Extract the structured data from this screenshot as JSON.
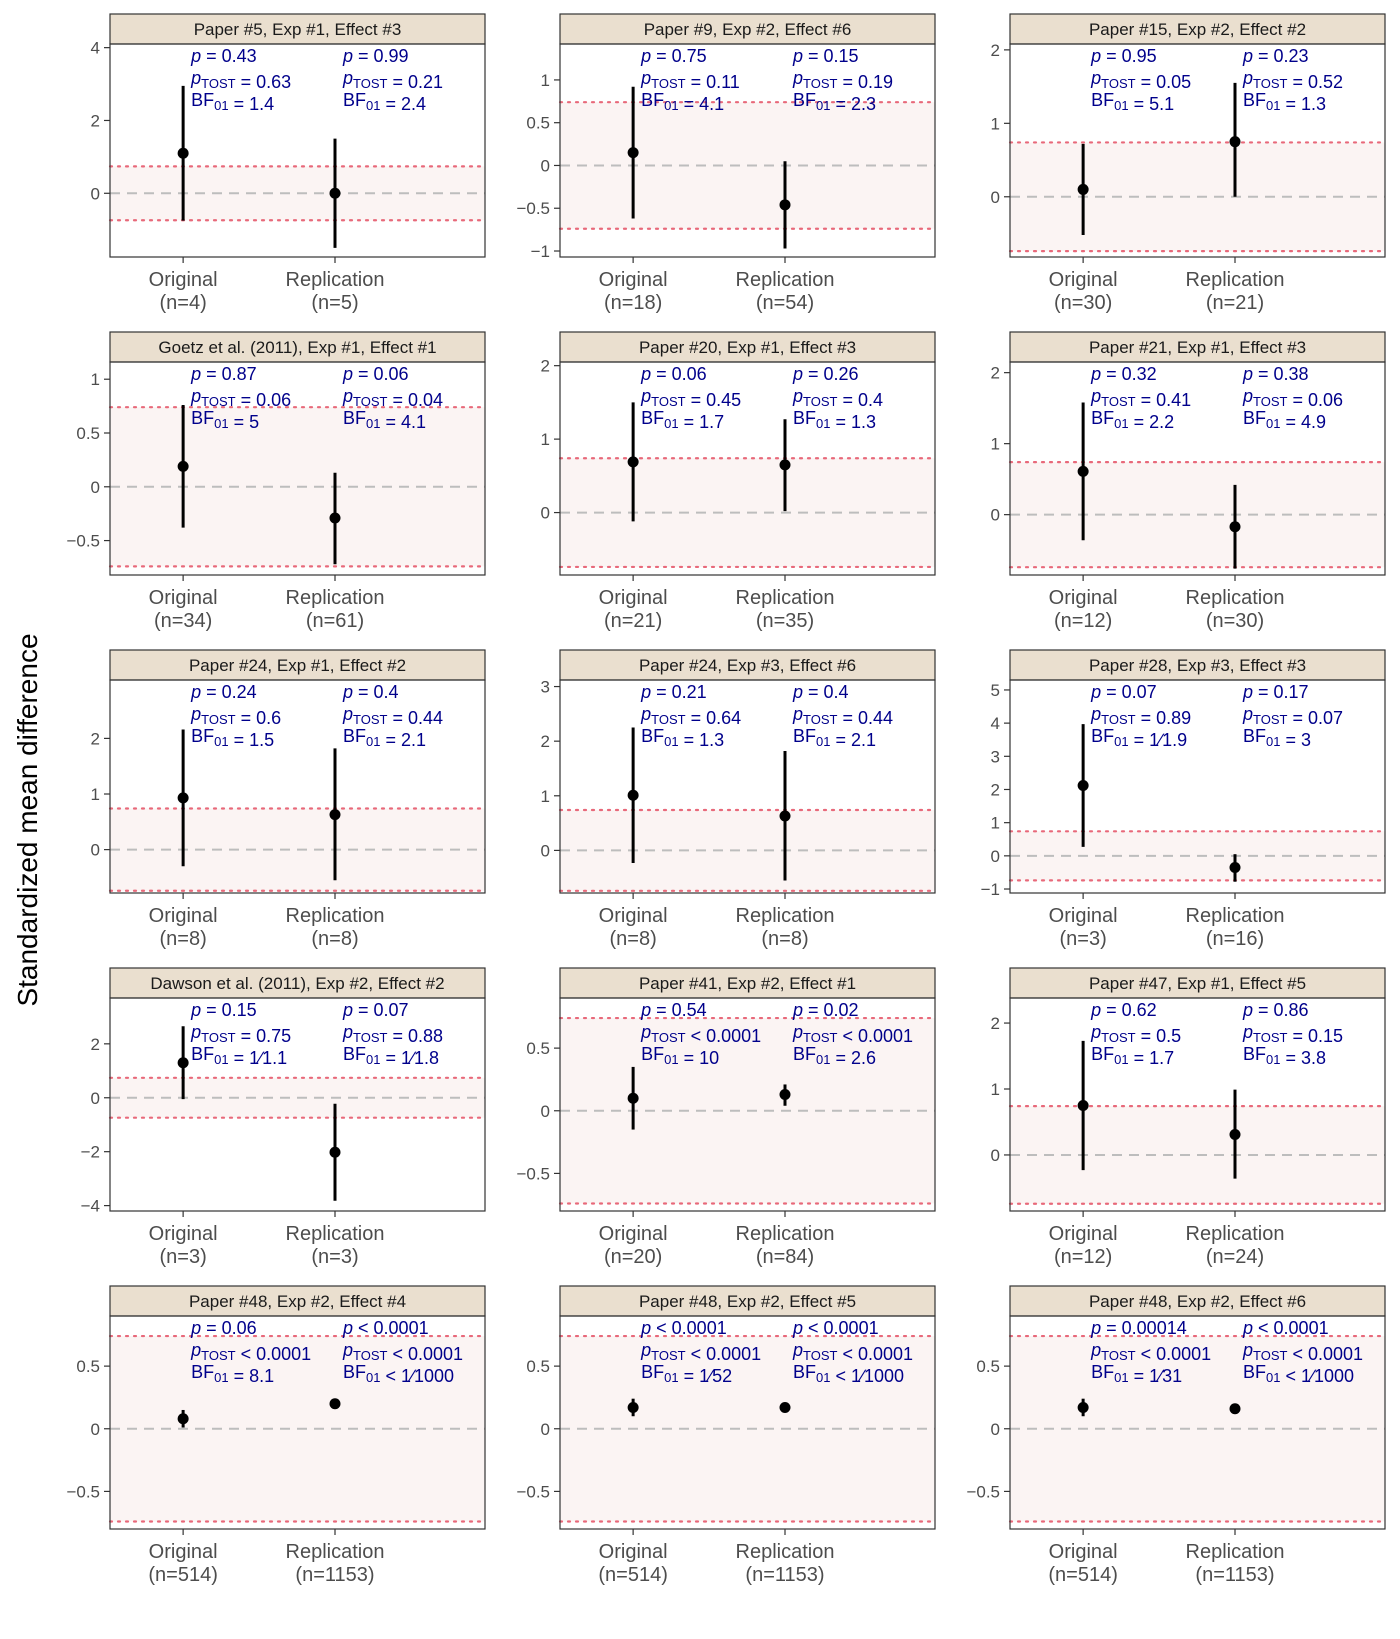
{
  "y_axis_title": "Standardized mean difference",
  "colors": {
    "strip": "#EADFCF",
    "band": "#FBF4F3",
    "margin_line": "#E8697A",
    "zero_line": "#BDBDBD",
    "stats_text": "#00008B",
    "axis_text": "#4D4D4D"
  },
  "chart_data": [
    {
      "type": "pointrange",
      "title": "Paper #5, Exp #1, Effect #3",
      "ylim": [
        -1.75,
        4.1
      ],
      "ticks": [
        0,
        2,
        4
      ],
      "margin": [
        -0.74,
        0.74
      ],
      "categories": [
        "Original",
        "Replication"
      ],
      "n": [
        "(n=4)",
        "(n=5)"
      ],
      "points": [
        {
          "est": 1.1,
          "lo": -0.75,
          "hi": 2.95
        },
        {
          "est": 0.0,
          "lo": -1.5,
          "hi": 1.5
        }
      ],
      "stats": [
        [
          "p = 0.43",
          "pTOST = 0.63",
          "BF01 = 1.4"
        ],
        [
          "p = 0.99",
          "pTOST = 0.21",
          "BF01 = 2.4"
        ]
      ]
    },
    {
      "type": "pointrange",
      "title": "Paper #9, Exp #2, Effect #6",
      "ylim": [
        -1.07,
        1.42
      ],
      "ticks": [
        -1.0,
        -0.5,
        0.0,
        0.5,
        1.0
      ],
      "margin": [
        -0.74,
        0.74
      ],
      "categories": [
        "Original",
        "Replication"
      ],
      "n": [
        "(n=18)",
        "(n=54)"
      ],
      "points": [
        {
          "est": 0.15,
          "lo": -0.62,
          "hi": 0.92
        },
        {
          "est": -0.46,
          "lo": -0.97,
          "hi": 0.05
        }
      ],
      "stats": [
        [
          "p = 0.75",
          "pTOST = 0.11",
          "BF01 = 4.1"
        ],
        [
          "p = 0.15",
          "pTOST = 0.19",
          "BF01 = 2.3"
        ]
      ]
    },
    {
      "type": "pointrange",
      "title": "Paper #15, Exp #2, Effect #2",
      "ylim": [
        -0.82,
        2.08
      ],
      "ticks": [
        0,
        1,
        2
      ],
      "margin": [
        -0.74,
        0.74
      ],
      "categories": [
        "Original",
        "Replication"
      ],
      "n": [
        "(n=30)",
        "(n=21)"
      ],
      "points": [
        {
          "est": 0.1,
          "lo": -0.52,
          "hi": 0.72
        },
        {
          "est": 0.75,
          "lo": 0.0,
          "hi": 1.55
        }
      ],
      "stats": [
        [
          "p = 0.95",
          "pTOST = 0.05",
          "BF01 = 5.1"
        ],
        [
          "p = 0.23",
          "pTOST = 0.52",
          "BF01 = 1.3"
        ]
      ]
    },
    {
      "type": "pointrange",
      "title": "Goetz et al. (2011), Exp #1, Effect #1",
      "ylim": [
        -0.82,
        1.16
      ],
      "ticks": [
        -0.5,
        0.0,
        0.5,
        1.0
      ],
      "margin": [
        -0.74,
        0.74
      ],
      "categories": [
        "Original",
        "Replication"
      ],
      "n": [
        "(n=34)",
        "(n=61)"
      ],
      "points": [
        {
          "est": 0.19,
          "lo": -0.38,
          "hi": 0.76
        },
        {
          "est": -0.29,
          "lo": -0.72,
          "hi": 0.13
        }
      ],
      "stats": [
        [
          "p = 0.87",
          "pTOST = 0.06",
          "BF01 = 5"
        ],
        [
          "p = 0.06",
          "pTOST = 0.04",
          "BF01 = 4.1"
        ]
      ]
    },
    {
      "type": "pointrange",
      "title": "Paper #20, Exp #1, Effect #3",
      "ylim": [
        -0.85,
        2.05
      ],
      "ticks": [
        0,
        1,
        2
      ],
      "margin": [
        -0.74,
        0.74
      ],
      "categories": [
        "Original",
        "Replication"
      ],
      "n": [
        "(n=21)",
        "(n=35)"
      ],
      "points": [
        {
          "est": 0.69,
          "lo": -0.12,
          "hi": 1.5
        },
        {
          "est": 0.65,
          "lo": 0.02,
          "hi": 1.27
        }
      ],
      "stats": [
        [
          "p = 0.06",
          "pTOST = 0.45",
          "BF01 = 1.7"
        ],
        [
          "p = 0.26",
          "pTOST = 0.4",
          "BF01 = 1.3"
        ]
      ]
    },
    {
      "type": "pointrange",
      "title": "Paper #21, Exp #1, Effect #3",
      "ylim": [
        -0.85,
        2.15
      ],
      "ticks": [
        0,
        1,
        2
      ],
      "margin": [
        -0.74,
        0.74
      ],
      "categories": [
        "Original",
        "Replication"
      ],
      "n": [
        "(n=12)",
        "(n=30)"
      ],
      "points": [
        {
          "est": 0.61,
          "lo": -0.36,
          "hi": 1.58
        },
        {
          "est": -0.17,
          "lo": -0.76,
          "hi": 0.42
        }
      ],
      "stats": [
        [
          "p = 0.32",
          "pTOST = 0.41",
          "BF01 = 2.2"
        ],
        [
          "p = 0.38",
          "pTOST = 0.06",
          "BF01 = 4.9"
        ]
      ]
    },
    {
      "type": "pointrange",
      "title": "Paper #24, Exp #1, Effect #2",
      "ylim": [
        -0.78,
        3.05
      ],
      "ticks": [
        0,
        1,
        2
      ],
      "margin": [
        -0.74,
        0.74
      ],
      "categories": [
        "Original",
        "Replication"
      ],
      "n": [
        "(n=8)",
        "(n=8)"
      ],
      "points": [
        {
          "est": 0.93,
          "lo": -0.3,
          "hi": 2.16
        },
        {
          "est": 0.63,
          "lo": -0.55,
          "hi": 1.82
        }
      ],
      "stats": [
        [
          "p = 0.24",
          "pTOST = 0.6",
          "BF01 = 1.5"
        ],
        [
          "p = 0.4",
          "pTOST = 0.44",
          "BF01 = 2.1"
        ]
      ]
    },
    {
      "type": "pointrange",
      "title": "Paper #24, Exp #3, Effect #6",
      "ylim": [
        -0.78,
        3.12
      ],
      "ticks": [
        0,
        1,
        2,
        3
      ],
      "margin": [
        -0.74,
        0.74
      ],
      "categories": [
        "Original",
        "Replication"
      ],
      "n": [
        "(n=8)",
        "(n=8)"
      ],
      "points": [
        {
          "est": 1.01,
          "lo": -0.23,
          "hi": 2.25
        },
        {
          "est": 0.63,
          "lo": -0.55,
          "hi": 1.82
        }
      ],
      "stats": [
        [
          "p = 0.21",
          "pTOST = 0.64",
          "BF01 = 1.3"
        ],
        [
          "p = 0.4",
          "pTOST = 0.44",
          "BF01 = 2.1"
        ]
      ]
    },
    {
      "type": "pointrange",
      "title": "Paper #28, Exp #3, Effect #3",
      "ylim": [
        -1.12,
        5.3
      ],
      "ticks": [
        -1,
        0,
        1,
        2,
        3,
        4,
        5
      ],
      "margin": [
        -0.74,
        0.74
      ],
      "categories": [
        "Original",
        "Replication"
      ],
      "n": [
        "(n=3)",
        "(n=16)"
      ],
      "points": [
        {
          "est": 2.12,
          "lo": 0.27,
          "hi": 3.97
        },
        {
          "est": -0.35,
          "lo": -0.78,
          "hi": 0.05
        }
      ],
      "stats": [
        [
          "p = 0.07",
          "pTOST = 0.89",
          "BF01 = 1/1.9"
        ],
        [
          "p = 0.17",
          "pTOST = 0.07",
          "BF01 = 3"
        ]
      ]
    },
    {
      "type": "pointrange",
      "title": "Dawson et al. (2011), Exp #2, Effect #2",
      "ylim": [
        -4.2,
        3.7
      ],
      "ticks": [
        -4,
        -2,
        0,
        2
      ],
      "margin": [
        -0.74,
        0.74
      ],
      "categories": [
        "Original",
        "Replication"
      ],
      "n": [
        "(n=3)",
        "(n=3)"
      ],
      "points": [
        {
          "est": 1.3,
          "lo": -0.05,
          "hi": 2.65
        },
        {
          "est": -2.02,
          "lo": -3.82,
          "hi": -0.22
        }
      ],
      "stats": [
        [
          "p = 0.15",
          "pTOST = 0.75",
          "BF01 = 1/1.1"
        ],
        [
          "p = 0.07",
          "pTOST = 0.88",
          "BF01 = 1/1.8"
        ]
      ]
    },
    {
      "type": "pointrange",
      "title": "Paper #41, Exp #2, Effect #1",
      "ylim": [
        -0.8,
        0.9
      ],
      "ticks": [
        -0.5,
        0.0,
        0.5
      ],
      "margin": [
        -0.74,
        0.74
      ],
      "categories": [
        "Original",
        "Replication"
      ],
      "n": [
        "(n=20)",
        "(n=84)"
      ],
      "points": [
        {
          "est": 0.1,
          "lo": -0.15,
          "hi": 0.35
        },
        {
          "est": 0.13,
          "lo": 0.04,
          "hi": 0.21
        }
      ],
      "stats": [
        [
          "p = 0.54",
          "pTOST < 0.0001",
          "BF01 = 10"
        ],
        [
          "p = 0.02",
          "pTOST < 0.0001",
          "BF01 = 2.6"
        ]
      ]
    },
    {
      "type": "pointrange",
      "title": "Paper #47, Exp #1, Effect #5",
      "ylim": [
        -0.85,
        2.38
      ],
      "ticks": [
        0,
        1,
        2
      ],
      "margin": [
        -0.74,
        0.74
      ],
      "categories": [
        "Original",
        "Replication"
      ],
      "n": [
        "(n=12)",
        "(n=24)"
      ],
      "points": [
        {
          "est": 0.75,
          "lo": -0.23,
          "hi": 1.73
        },
        {
          "est": 0.31,
          "lo": -0.36,
          "hi": 0.99
        }
      ],
      "stats": [
        [
          "p = 0.62",
          "pTOST = 0.5",
          "BF01 = 1.7"
        ],
        [
          "p = 0.86",
          "pTOST = 0.15",
          "BF01 = 3.8"
        ]
      ]
    },
    {
      "type": "pointrange",
      "title": "Paper #48, Exp #2, Effect #4",
      "ylim": [
        -0.8,
        0.9
      ],
      "ticks": [
        -0.5,
        0.0,
        0.5
      ],
      "margin": [
        -0.74,
        0.74
      ],
      "categories": [
        "Original",
        "Replication"
      ],
      "n": [
        "(n=514)",
        "(n=1153)"
      ],
      "points": [
        {
          "est": 0.08,
          "lo": 0.01,
          "hi": 0.15
        },
        {
          "est": 0.2,
          "lo": 0.18,
          "hi": 0.22
        }
      ],
      "stats": [
        [
          "p = 0.06",
          "pTOST < 0.0001",
          "BF01 = 8.1"
        ],
        [
          "p < 0.0001",
          "pTOST < 0.0001",
          "BF01 < 1/1000"
        ]
      ]
    },
    {
      "type": "pointrange",
      "title": "Paper #48, Exp #2, Effect #5",
      "ylim": [
        -0.8,
        0.9
      ],
      "ticks": [
        -0.5,
        0.0,
        0.5
      ],
      "margin": [
        -0.74,
        0.74
      ],
      "categories": [
        "Original",
        "Replication"
      ],
      "n": [
        "(n=514)",
        "(n=1153)"
      ],
      "points": [
        {
          "est": 0.17,
          "lo": 0.1,
          "hi": 0.24
        },
        {
          "est": 0.17,
          "lo": 0.15,
          "hi": 0.19
        }
      ],
      "stats": [
        [
          "p < 0.0001",
          "pTOST < 0.0001",
          "BF01 = 1/52"
        ],
        [
          "p < 0.0001",
          "pTOST < 0.0001",
          "BF01 < 1/1000"
        ]
      ]
    },
    {
      "type": "pointrange",
      "title": "Paper #48, Exp #2, Effect #6",
      "ylim": [
        -0.8,
        0.9
      ],
      "ticks": [
        -0.5,
        0.0,
        0.5
      ],
      "margin": [
        -0.74,
        0.74
      ],
      "categories": [
        "Original",
        "Replication"
      ],
      "n": [
        "(n=514)",
        "(n=1153)"
      ],
      "points": [
        {
          "est": 0.17,
          "lo": 0.1,
          "hi": 0.24
        },
        {
          "est": 0.16,
          "lo": 0.14,
          "hi": 0.18
        }
      ],
      "stats": [
        [
          "p = 0.00014",
          "pTOST < 0.0001",
          "BF01 = 1/31"
        ],
        [
          "p < 0.0001",
          "pTOST < 0.0001",
          "BF01 < 1/1000"
        ]
      ]
    }
  ]
}
